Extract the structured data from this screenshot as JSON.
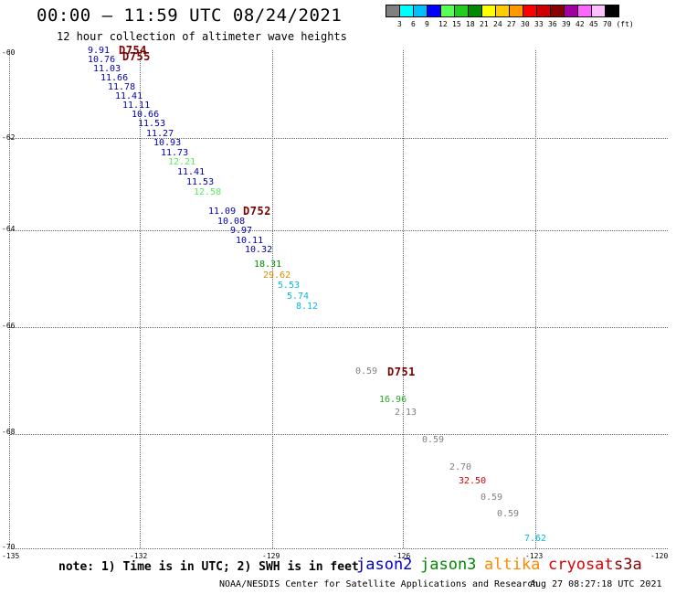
{
  "header": {
    "title": "00:00 – 11:59 UTC 08/24/2021",
    "subtitle": "12 hour collection of altimeter wave heights"
  },
  "colorbar": {
    "colors": [
      "#808080",
      "#00ffff",
      "#00bfff",
      "#0000ff",
      "#55ff55",
      "#22cc22",
      "#008800",
      "#ffff00",
      "#ffcc00",
      "#ff9900",
      "#ff0000",
      "#cc0000",
      "#880000",
      "#a000a0",
      "#ff66ff",
      "#ffc0ff",
      "#000000"
    ],
    "labels": [
      "3",
      "6",
      "9",
      "12",
      "15",
      "18",
      "21",
      "24",
      "27",
      "30",
      "33",
      "36",
      "39",
      "42",
      "45",
      "70 (ft)"
    ]
  },
  "axes": {
    "lat_labels": [
      "-60",
      "-62",
      "-64",
      "-66",
      "-68",
      "-70"
    ],
    "lon_labels": [
      "-135",
      "-132",
      "-129",
      "-126",
      "-123",
      "-120"
    ]
  },
  "passes": [
    "D754",
    "D755",
    "D752",
    "D751"
  ],
  "observations": [
    {
      "v": "9.91",
      "c": "#0000aa"
    },
    {
      "v": "10.76",
      "c": "#0000aa"
    },
    {
      "v": "11.03",
      "c": "#0000aa"
    },
    {
      "v": "11.66",
      "c": "#0000aa"
    },
    {
      "v": "11.78",
      "c": "#0000aa"
    },
    {
      "v": "11.41",
      "c": "#0000aa"
    },
    {
      "v": "11.11",
      "c": "#0000aa"
    },
    {
      "v": "10.66",
      "c": "#0000aa"
    },
    {
      "v": "11.53",
      "c": "#0000aa"
    },
    {
      "v": "11.27",
      "c": "#0000aa"
    },
    {
      "v": "10.93",
      "c": "#0000aa"
    },
    {
      "v": "11.73",
      "c": "#0000aa"
    },
    {
      "v": "12.21",
      "c": "#55ee55"
    },
    {
      "v": "11.41",
      "c": "#0000aa"
    },
    {
      "v": "11.53",
      "c": "#0000aa"
    },
    {
      "v": "12.58",
      "c": "#55ee55"
    },
    {
      "v": "11.09",
      "c": "#0000aa"
    },
    {
      "v": "10.08",
      "c": "#0000aa"
    },
    {
      "v": "9.97",
      "c": "#0000aa"
    },
    {
      "v": "10.11",
      "c": "#0000aa"
    },
    {
      "v": "10.32",
      "c": "#0000aa"
    },
    {
      "v": "18.31",
      "c": "#008800"
    },
    {
      "v": "29.62",
      "c": "#dd8800"
    },
    {
      "v": "5.53",
      "c": "#00bbdd"
    },
    {
      "v": "5.74",
      "c": "#00bbdd"
    },
    {
      "v": "8.12",
      "c": "#00bbdd"
    },
    {
      "v": "0.59",
      "c": "#808080"
    },
    {
      "v": "16.96",
      "c": "#22aa22"
    },
    {
      "v": "2.13",
      "c": "#808080"
    },
    {
      "v": "0.59",
      "c": "#808080"
    },
    {
      "v": "2.70",
      "c": "#808080"
    },
    {
      "v": "32.50",
      "c": "#dd0000"
    },
    {
      "v": "0.59",
      "c": "#808080"
    },
    {
      "v": "0.59",
      "c": "#808080"
    },
    {
      "v": "7.62",
      "c": "#00bbdd"
    }
  ],
  "note": "note: 1) Time is in UTC; 2) SWH is in feet",
  "legend": [
    {
      "label": "jason2",
      "color": "#0000cc"
    },
    {
      "label": "jason3",
      "color": "#008800"
    },
    {
      "label": "altika",
      "color": "#ff8800"
    },
    {
      "label": "cryosat",
      "color": "#dd0000"
    },
    {
      "label": "s3a",
      "color": "#880000"
    }
  ],
  "footer": {
    "credit": "NOAA/NESDIS Center for Satellite Applications and Research",
    "timestamp": "Aug 27 08:27:18 UTC 2021"
  }
}
